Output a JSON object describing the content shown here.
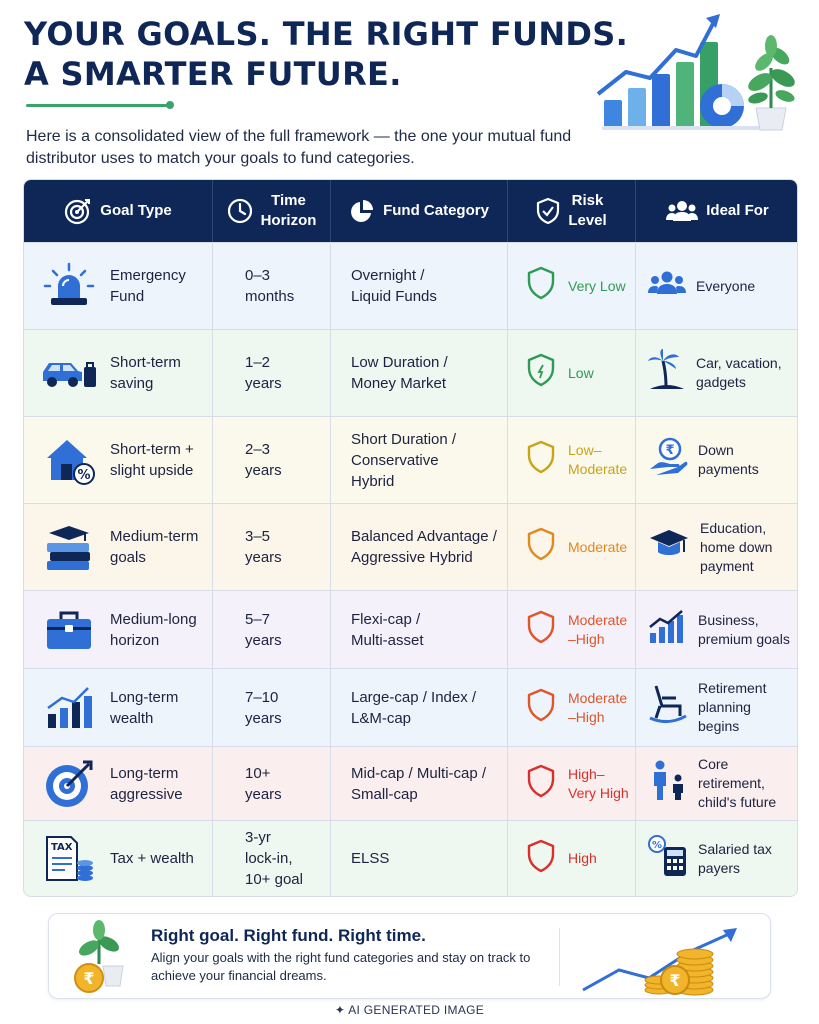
{
  "header": {
    "title_line1": "YOUR GOALS. THE RIGHT FUNDS.",
    "title_line2": "A SMARTER FUTURE.",
    "intro": "Here is a consolidated view of the full framework — the one your mutual fund distributor uses to match your goals to fund categories."
  },
  "colors": {
    "navy": "#0f2757",
    "green": "#3aa36b",
    "accent_blue": "#2f6fd6"
  },
  "table": {
    "columns": [
      {
        "label": "Goal Type",
        "icon": "target-icon"
      },
      {
        "label": "Time\nHorizon",
        "icon": "clock-icon"
      },
      {
        "label": "Fund Category",
        "icon": "pie-chart-icon"
      },
      {
        "label": "Risk\nLevel",
        "icon": "shield-check-icon"
      },
      {
        "label": "Ideal For",
        "icon": "people-icon"
      }
    ],
    "rows": [
      {
        "goal": "Emergency\nFund",
        "goal_icon": "siren-icon",
        "time": "0–3\nmonths",
        "fund": "Overnight /\nLiquid Funds",
        "risk": "Very Low",
        "risk_color": "#2e9b55",
        "ideal": "Everyone",
        "ideal_icon": "people-icon",
        "bg": "#eef4fc"
      },
      {
        "goal": "Short-term\nsaving",
        "goal_icon": "car-luggage-icon",
        "time": "1–2\nyears",
        "fund": "Low Duration /\nMoney Market",
        "risk": "Low",
        "risk_color": "#2e9b55",
        "ideal": "Car, vacation,\ngadgets",
        "ideal_icon": "palm-tree-icon",
        "bg": "#eef7f0"
      },
      {
        "goal": "Short-term +\nslight upside",
        "goal_icon": "house-percent-icon",
        "time": "2–3\nyears",
        "fund": "Short Duration /\nConservative\nHybrid",
        "risk": "Low–\nModerate",
        "risk_color": "#c9a31a",
        "ideal": "Down\npayments",
        "ideal_icon": "hand-rupee-icon",
        "bg": "#fbf9ec"
      },
      {
        "goal": "Medium-term\ngoals",
        "goal_icon": "books-icon",
        "time": "3–5\nyears",
        "fund": "Balanced Advantage /\nAggressive Hybrid",
        "risk": "Moderate",
        "risk_color": "#e08a1e",
        "ideal": "Education,\nhome down\npayment",
        "ideal_icon": "graduation-cap-icon",
        "bg": "#fcf5ea"
      },
      {
        "goal": "Medium-long\nhorizon",
        "goal_icon": "briefcase-icon",
        "time": "5–7\nyears",
        "fund": "Flexi-cap /\nMulti-asset",
        "risk": "Moderate\n–High",
        "risk_color": "#e0552a",
        "ideal": "Business,\npremium goals",
        "ideal_icon": "growth-chart-icon",
        "bg": "#f4f1fa"
      },
      {
        "goal": "Long-term\nwealth",
        "goal_icon": "bar-chart-icon",
        "time": "7–10\nyears",
        "fund": "Large-cap / Index /\nL&M-cap",
        "risk": "Moderate\n–High",
        "risk_color": "#e0552a",
        "ideal": "Retirement\nplanning\nbegins",
        "ideal_icon": "rocking-chair-icon",
        "bg": "#eef4fc"
      },
      {
        "goal": "Long-term\naggressive",
        "goal_icon": "target-arrow-icon",
        "time": "10+\nyears",
        "fund": "Mid-cap / Multi-cap /\nSmall-cap",
        "risk": "High–\nVery High",
        "risk_color": "#d8312c",
        "ideal": "Core retirement,\nchild's future",
        "ideal_icon": "parent-child-icon",
        "bg": "#fbeeee"
      },
      {
        "goal": "Tax + wealth",
        "goal_icon": "tax-document-icon",
        "time": "3-yr\nlock-in,\n10+ goal",
        "fund": "ELSS",
        "risk": "High",
        "risk_color": "#d8312c",
        "ideal": "Salaried tax\npayers",
        "ideal_icon": "calculator-icon",
        "bg": "#eef7f0"
      }
    ]
  },
  "footer": {
    "headline": "Right goal. Right fund. Right time.",
    "subtext": "Align your goals with the right fund categories and stay on track to achieve your financial dreams.",
    "ai_label": "AI GENERATED IMAGE"
  }
}
